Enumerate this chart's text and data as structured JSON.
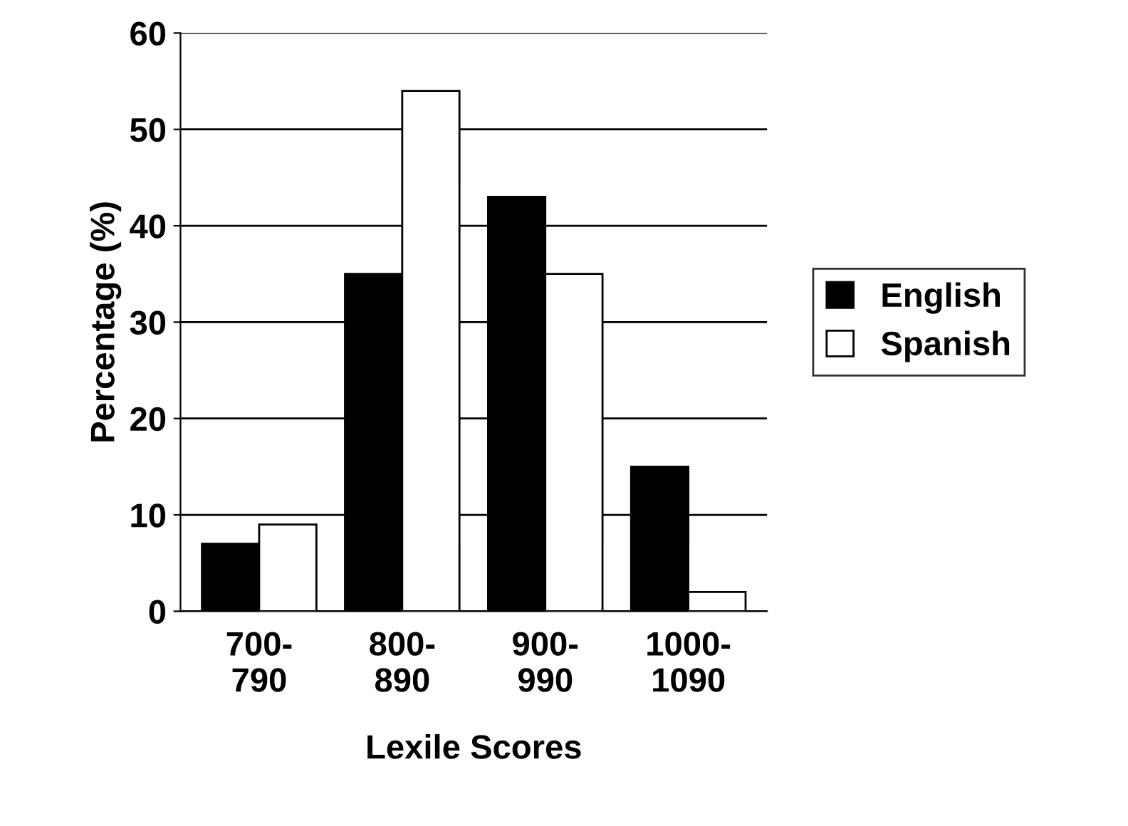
{
  "chart_data": {
    "type": "bar",
    "xlabel": "Lexile Scores",
    "ylabel": "Percentage (%)",
    "categories": [
      "700-\n790",
      "800-\n890",
      "900-\n990",
      "1000-\n1090"
    ],
    "series": [
      {
        "name": "English",
        "color": "#000000",
        "values": [
          7,
          35,
          43,
          15
        ]
      },
      {
        "name": "Spanish",
        "color": "#ffffff",
        "values": [
          9,
          54,
          35,
          2
        ]
      }
    ],
    "ylim": [
      0,
      60
    ],
    "yticks": [
      0,
      10,
      20,
      30,
      40,
      50,
      60
    ],
    "grid": "y",
    "legend": "right"
  }
}
